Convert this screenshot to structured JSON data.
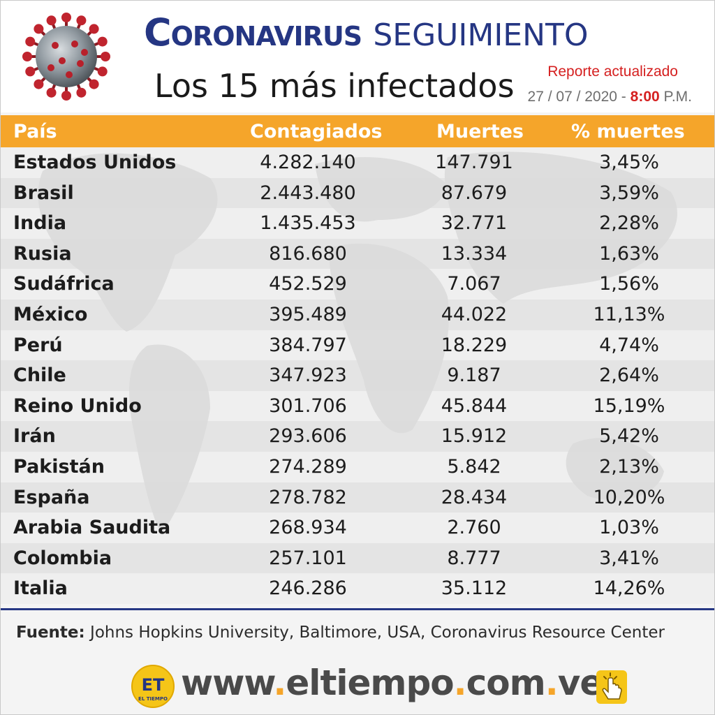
{
  "header": {
    "title_main": "Coronavirus",
    "title_sub": "SEGUIMIENTO",
    "subtitle": "Los 15 más infectados",
    "report_label": "Reporte actualizado",
    "report_date": "27 / 07 / 2020 -",
    "report_time": "8:00",
    "report_ampm": "P.M."
  },
  "table": {
    "columns": [
      "País",
      "Contagiados",
      "Muertes",
      "% muertes"
    ],
    "rows": [
      {
        "country": "Estados Unidos",
        "cases": "4.282.140",
        "deaths": "147.791",
        "pct": "3,45%"
      },
      {
        "country": "Brasil",
        "cases": "2.443.480",
        "deaths": "87.679",
        "pct": "3,59%"
      },
      {
        "country": "India",
        "cases": "1.435.453",
        "deaths": "32.771",
        "pct": "2,28%"
      },
      {
        "country": "Rusia",
        "cases": "816.680",
        "deaths": "13.334",
        "pct": "1,63%"
      },
      {
        "country": "Sudáfrica",
        "cases": "452.529",
        "deaths": "7.067",
        "pct": "1,56%"
      },
      {
        "country": "México",
        "cases": "395.489",
        "deaths": "44.022",
        "pct": "11,13%"
      },
      {
        "country": "Perú",
        "cases": "384.797",
        "deaths": "18.229",
        "pct": "4,74%"
      },
      {
        "country": "Chile",
        "cases": "347.923",
        "deaths": "9.187",
        "pct": "2,64%"
      },
      {
        "country": "Reino Unido",
        "cases": "301.706",
        "deaths": "45.844",
        "pct": "15,19%"
      },
      {
        "country": "Irán",
        "cases": "293.606",
        "deaths": "15.912",
        "pct": "5,42%"
      },
      {
        "country": "Pakistán",
        "cases": "274.289",
        "deaths": "5.842",
        "pct": "2,13%"
      },
      {
        "country": "España",
        "cases": "278.782",
        "deaths": "28.434",
        "pct": "10,20%"
      },
      {
        "country": "Arabia Saudita",
        "cases": "268.934",
        "deaths": "2.760",
        "pct": "1,03%"
      },
      {
        "country": "Colombia",
        "cases": "257.101",
        "deaths": "8.777",
        "pct": "3,41%"
      },
      {
        "country": "Italia",
        "cases": "246.286",
        "deaths": "35.112",
        "pct": "14,26%"
      }
    ]
  },
  "footer": {
    "source_label": "Fuente:",
    "source_text": "Johns Hopkins University, Baltimore, USA, Coronavirus Resource Center",
    "url_parts": [
      "www",
      ".",
      "eltiempo",
      ".",
      "com",
      ".",
      "ve"
    ],
    "logo_text": "ET",
    "logo_subtext": "EL TIEMPO"
  },
  "colors": {
    "title_blue": "#253683",
    "header_orange": "#f5a52a",
    "accent_red": "#d52020",
    "text_dark": "#1c1c1c"
  },
  "icons": [
    "coronavirus-icon",
    "world-map-background",
    "el-tiempo-logo-icon",
    "click-hand-icon"
  ]
}
